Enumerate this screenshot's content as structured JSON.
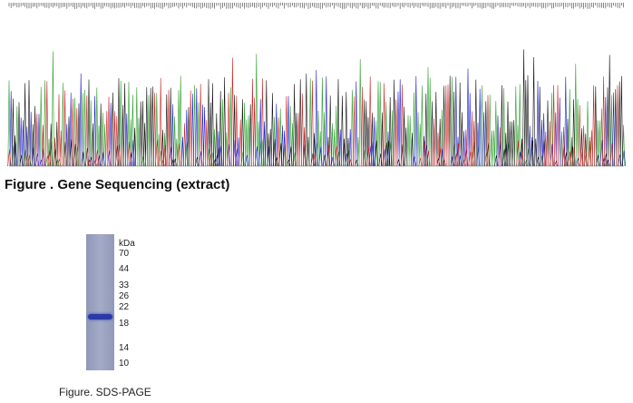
{
  "sequencing": {
    "caption": "Figure . Gene Sequencing (extract)"
  },
  "gel": {
    "unit": "kDa",
    "markers": [
      "70",
      "44",
      "33",
      "26",
      "22",
      "18",
      "14",
      "10"
    ],
    "caption": "Figure. SDS-PAGE"
  }
}
